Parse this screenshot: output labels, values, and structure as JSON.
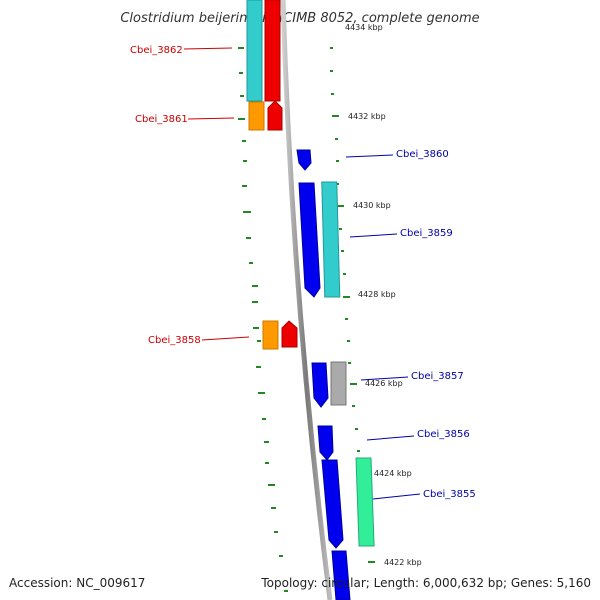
{
  "title": "Clostridium beijerinckii NCIMB 8052, complete genome",
  "footer": {
    "accession": "Accession: NC_009617",
    "info": "Topology: circular; Length: 6,000,632 bp; Genes: 5,160"
  },
  "ticks": [
    {
      "label": "4434 kbp"
    },
    {
      "label": "4432 kbp"
    },
    {
      "label": "4430 kbp"
    },
    {
      "label": "4428 kbp"
    },
    {
      "label": "4426 kbp"
    },
    {
      "label": "4424 kbp"
    },
    {
      "label": "4422 kbp"
    }
  ],
  "gene_labels": [
    {
      "name": "Cbei_3862",
      "strand": "reverse"
    },
    {
      "name": "Cbei_3861",
      "strand": "reverse"
    },
    {
      "name": "Cbei_3860",
      "strand": "forward"
    },
    {
      "name": "Cbei_3859",
      "strand": "forward"
    },
    {
      "name": "Cbei_3858",
      "strand": "reverse"
    },
    {
      "name": "Cbei_3857",
      "strand": "forward"
    },
    {
      "name": "Cbei_3856",
      "strand": "forward"
    },
    {
      "name": "Cbei_3855",
      "strand": "forward"
    }
  ],
  "colors": {
    "forward_cds": "#0000ee",
    "reverse_cds": "#ee0000",
    "forward_label": "#0000aa",
    "reverse_label": "#cc0000",
    "cog_cyan": "#33cccc",
    "cog_orange": "#ff9900",
    "cog_gray": "#aaaaaa",
    "cog_teal": "#33ee99",
    "backbone": "#888888",
    "gc_marks": "#228822"
  }
}
